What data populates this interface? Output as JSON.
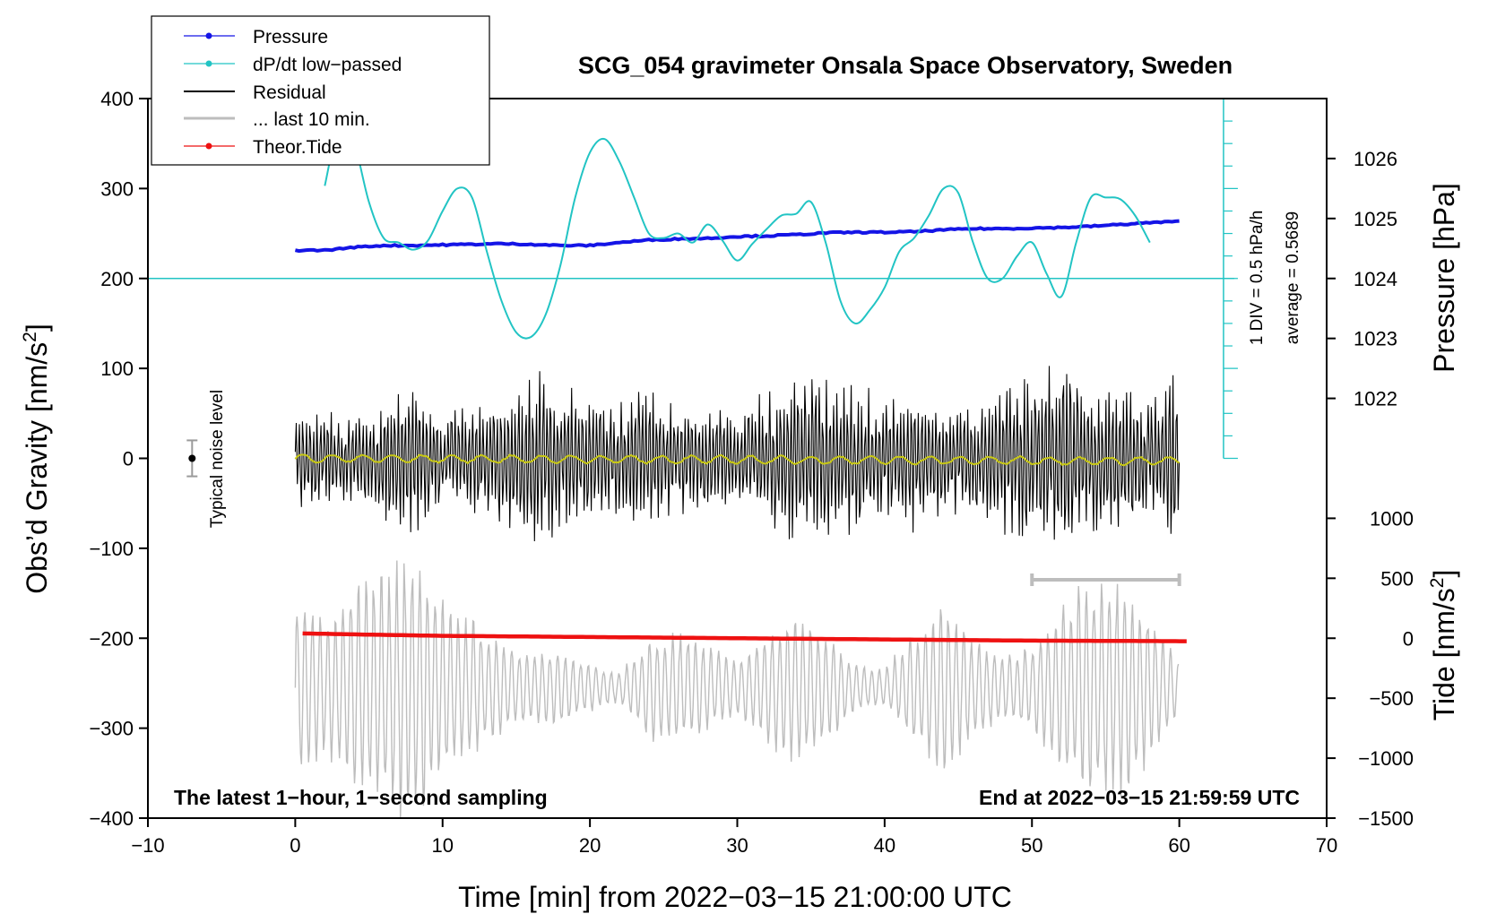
{
  "chart_data": {
    "type": "line",
    "title": "SCG_054 gravimeter Onsala Space Observatory, Sweden",
    "xlabel": "Time [min] from 2022−03−15 21:00:00 UTC",
    "ylabel_left_main": "Obs’d Gravity [nm/s",
    "ylabel_left_sup": "2",
    "ylabel_left_end": "]",
    "ylabel_right_top": "Pressure [hPa]",
    "ylabel_right_bottom_main": "Tide [nm/s",
    "ylabel_right_bottom_sup": "2",
    "ylabel_right_bottom_end": "]",
    "xlim": [
      -10,
      70
    ],
    "ylim": [
      -400,
      400
    ],
    "x_ticks": [
      -10,
      0,
      10,
      20,
      30,
      40,
      50,
      60,
      70
    ],
    "x_tick_labels": [
      "−10",
      "0",
      "10",
      "20",
      "30",
      "40",
      "50",
      "60",
      "70"
    ],
    "y_ticks": [
      -400,
      -300,
      -200,
      -100,
      0,
      100,
      200,
      300,
      400
    ],
    "y_tick_labels": [
      "−400",
      "−300",
      "−200",
      "−100",
      "0",
      "100",
      "200",
      "300",
      "400"
    ],
    "pressure_axis": {
      "ticks": [
        1022,
        1023,
        1024,
        1025,
        1026
      ],
      "tick_labels": [
        "1022",
        "1023",
        "1024",
        "1025",
        "1026"
      ],
      "value_at_gravity_200": 1024,
      "hpa_per_100_gravity": 1.5
    },
    "tide_axis": {
      "ticks": [
        -1500,
        -1000,
        -500,
        0,
        500,
        1000
      ],
      "tick_labels": [
        "−1500",
        "−1000",
        "−500",
        "0",
        "500",
        "1000"
      ],
      "value_at_gravity_minus_200": 0,
      "tide_per_100_gravity": 750
    },
    "dpdt_axis": {
      "label": "1 DIV = 0.5 hPa/h",
      "average_label": "average = 0.5689",
      "baseline_gravity": 200,
      "x_position_min": 63,
      "range_gravity": [
        0,
        400
      ],
      "divisions": 16
    },
    "legend": [
      {
        "name": "Pressure",
        "color": "#1414e6",
        "marker": "dot"
      },
      {
        "name": "dP/dt low−passed",
        "color": "#22c4c4",
        "marker": "dot"
      },
      {
        "name": "Residual",
        "color": "#000000",
        "marker": "none"
      },
      {
        "name": "... last 10 min.",
        "color": "#bdbdbd",
        "marker": "none"
      },
      {
        "name": "Theor.Tide",
        "color": "#ee1111",
        "marker": "dot"
      }
    ],
    "series": [
      {
        "name": "Pressure",
        "axis": "pressure_hPa",
        "color": "#1414e6",
        "x": [
          0,
          2,
          4,
          6,
          8,
          10,
          12,
          14,
          16,
          18,
          20,
          22,
          24,
          26,
          28,
          30,
          32,
          34,
          36,
          38,
          40,
          42,
          44,
          46,
          48,
          50,
          52,
          54,
          56,
          58,
          60
        ],
        "values": [
          1024.47,
          1024.47,
          1024.52,
          1024.55,
          1024.55,
          1024.56,
          1024.57,
          1024.58,
          1024.57,
          1024.55,
          1024.55,
          1024.6,
          1024.64,
          1024.66,
          1024.67,
          1024.7,
          1024.71,
          1024.73,
          1024.76,
          1024.77,
          1024.77,
          1024.78,
          1024.81,
          1024.83,
          1024.83,
          1024.84,
          1024.85,
          1024.87,
          1024.9,
          1024.93,
          1024.95
        ]
      },
      {
        "name": "dP/dt low−passed",
        "axis": "gravity_scaled",
        "color": "#22c4c4",
        "x": [
          2,
          3,
          4,
          5,
          6,
          7,
          8,
          9,
          10,
          11,
          12,
          13,
          14,
          15,
          16,
          17,
          18,
          19,
          20,
          21,
          22,
          23,
          24,
          25,
          26,
          27,
          28,
          29,
          30,
          31,
          32,
          33,
          34,
          35,
          36,
          37,
          38,
          39,
          40,
          41,
          42,
          43,
          44,
          45,
          46,
          47,
          48,
          49,
          50,
          51,
          52,
          53,
          54,
          55,
          56,
          57,
          58
        ],
        "values": [
          303,
          370,
          350,
          285,
          245,
          240,
          232,
          242,
          275,
          300,
          290,
          230,
          175,
          140,
          135,
          160,
          215,
          290,
          340,
          355,
          330,
          290,
          250,
          245,
          250,
          240,
          260,
          242,
          220,
          238,
          255,
          270,
          272,
          285,
          240,
          175,
          150,
          165,
          190,
          230,
          245,
          270,
          300,
          295,
          240,
          200,
          200,
          225,
          240,
          205,
          180,
          240,
          290,
          290,
          288,
          270,
          240
        ]
      },
      {
        "name": "Residual",
        "axis": "gravity",
        "color": "#000000",
        "x_range": [
          0,
          60
        ],
        "envelope_x": [
          0,
          2,
          4,
          6,
          8,
          10,
          12,
          14,
          16,
          18,
          20,
          22,
          24,
          26,
          28,
          30,
          32,
          34,
          36,
          38,
          40,
          42,
          44,
          46,
          48,
          50,
          52,
          54,
          56,
          58,
          60
        ],
        "envelope_amplitude": [
          60,
          55,
          45,
          70,
          85,
          55,
          65,
          75,
          100,
          80,
          70,
          65,
          80,
          60,
          70,
          45,
          80,
          100,
          95,
          85,
          70,
          80,
          70,
          60,
          85,
          95,
          120,
          90,
          80,
          60,
          110
        ]
      },
      {
        "name": "... last 10 min.",
        "axis": "gravity",
        "color": "#bdbdbd",
        "x_range": [
          0,
          60
        ],
        "center": -255,
        "envelope_x": [
          0,
          2,
          4,
          6,
          8,
          10,
          12,
          14,
          16,
          18,
          20,
          22,
          24,
          26,
          28,
          30,
          32,
          34,
          36,
          38,
          40,
          42,
          44,
          46,
          48,
          50,
          52,
          54,
          56,
          58,
          60
        ],
        "envelope_amplitude": [
          95,
          70,
          110,
          125,
          145,
          90,
          75,
          50,
          35,
          40,
          25,
          15,
          55,
          60,
          45,
          30,
          60,
          80,
          60,
          25,
          20,
          60,
          90,
          55,
          35,
          45,
          90,
          120,
          115,
          80,
          25
        ]
      },
      {
        "name": "Theor.Tide",
        "axis": "tide",
        "color": "#ee1111",
        "x": [
          0.5,
          5,
          10,
          15,
          20,
          25,
          30,
          35,
          40,
          45,
          50,
          55,
          60.5
        ],
        "values": [
          40,
          30,
          20,
          15,
          10,
          5,
          0,
          -5,
          -10,
          -15,
          -20,
          -22,
          -25
        ]
      },
      {
        "name": "Residual running mean",
        "axis": "gravity",
        "color": "#c8c814",
        "x_range": [
          0,
          60
        ],
        "values_approx": 0
      }
    ],
    "noise_level": {
      "label": "Typical noise level",
      "x": -7,
      "center": 0,
      "half_range": 20
    },
    "last10_marker": {
      "x_range": [
        50,
        60
      ],
      "y": -135
    },
    "annotations": {
      "bottom_left": "The latest 1−hour, 1−second sampling",
      "bottom_right": "End at 2022−03−15 21:59:59 UTC"
    }
  }
}
